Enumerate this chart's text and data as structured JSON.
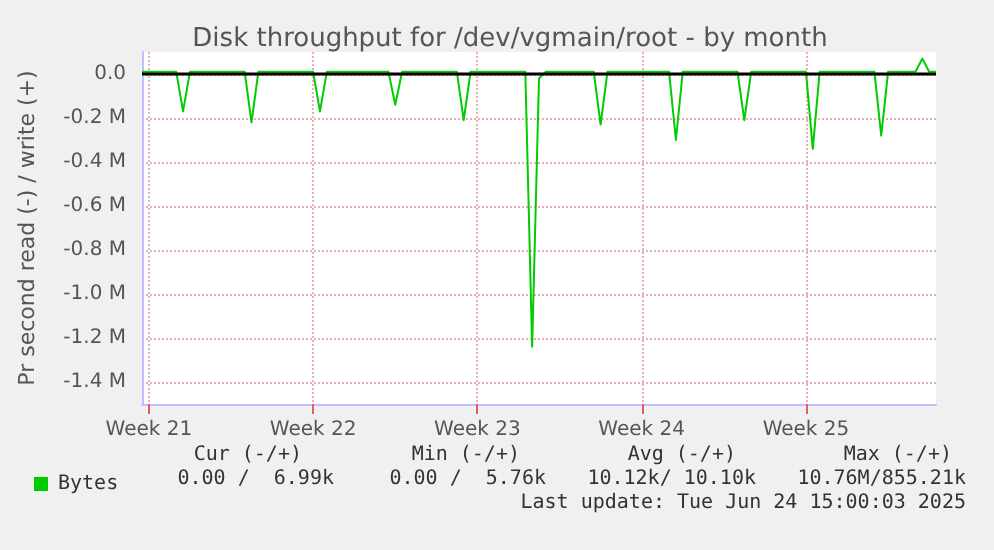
{
  "chart_data": {
    "type": "line",
    "title": "Disk throughput for /dev/vgmain/root - by month",
    "ylabel": "Pr second read (-) / write (+)",
    "categories": [
      null,
      "Week 21",
      null,
      null,
      null,
      null,
      null,
      null,
      null,
      null,
      null,
      null,
      null,
      null,
      null,
      null,
      null,
      null,
      null,
      null,
      null,
      null,
      null,
      null,
      null,
      "Week 22",
      null,
      null,
      null,
      null,
      null,
      null,
      null,
      null,
      null,
      null,
      null,
      null,
      null,
      null,
      null,
      null,
      null,
      null,
      null,
      null,
      null,
      null,
      null,
      "Week 23",
      null,
      null,
      null,
      null,
      null,
      null,
      null,
      null,
      null,
      null,
      null,
      null,
      null,
      null,
      null,
      null,
      null,
      null,
      null,
      null,
      null,
      null,
      null,
      "Week 24",
      null,
      null,
      null,
      null,
      null,
      null,
      null,
      null,
      null,
      null,
      null,
      null,
      null,
      null,
      null,
      null,
      null,
      null,
      null,
      null,
      null,
      null,
      null,
      "Week 25",
      null,
      null,
      null,
      null,
      null,
      null,
      null,
      null,
      null,
      null,
      null,
      null,
      null,
      null,
      null,
      null,
      null,
      null,
      null
    ],
    "series": [
      {
        "name": "Bytes",
        "color": "#00cc00",
        "values": [
          0.01,
          0.01,
          0.01,
          0.01,
          0.01,
          0.01,
          -0.17,
          0.01,
          0.01,
          0.01,
          0.01,
          0.01,
          0.01,
          0.01,
          0.01,
          0.01,
          -0.22,
          0.01,
          0.01,
          0.01,
          0.01,
          0.01,
          0.01,
          0.01,
          0.01,
          0.01,
          -0.17,
          0.01,
          0.01,
          0.01,
          0.01,
          0.01,
          0.01,
          0.01,
          0.01,
          0.01,
          0.01,
          -0.14,
          0.01,
          0.01,
          0.01,
          0.01,
          0.01,
          0.01,
          0.01,
          0.01,
          0.01,
          -0.21,
          0.01,
          0.01,
          0.01,
          0.01,
          0.01,
          0.01,
          0.01,
          0.01,
          0.01,
          -1.24,
          -0.02,
          0.01,
          0.01,
          0.01,
          0.01,
          0.01,
          0.01,
          0.01,
          0.01,
          -0.23,
          0.01,
          0.01,
          0.01,
          0.01,
          0.01,
          0.01,
          0.01,
          0.01,
          0.01,
          0.01,
          -0.3,
          0.01,
          0.01,
          0.01,
          0.01,
          0.01,
          0.01,
          0.01,
          0.01,
          0.01,
          -0.21,
          0.01,
          0.01,
          0.01,
          0.01,
          0.01,
          0.01,
          0.01,
          0.01,
          0.01,
          -0.34,
          0.01,
          0.01,
          0.01,
          0.01,
          0.01,
          0.01,
          0.01,
          0.01,
          0.01,
          -0.28,
          0.01,
          0.01,
          0.01,
          0.01,
          0.01,
          0.07,
          0.01,
          0.01
        ]
      }
    ],
    "ylim": [
      -1.5,
      0.1
    ],
    "yticks": [
      {
        "value": -1.4,
        "label": "-1.4 M"
      },
      {
        "value": -1.2,
        "label": "-1.2 M"
      },
      {
        "value": -1.0,
        "label": "-1.0 M"
      },
      {
        "value": -0.8,
        "label": "-0.8 M"
      },
      {
        "value": -0.6,
        "label": "-0.6 M"
      },
      {
        "value": -0.4,
        "label": "-0.4 M"
      },
      {
        "value": -0.2,
        "label": "-0.2 M"
      },
      {
        "value": 0,
        "label": "0.0"
      }
    ],
    "ref_lines": [
      {
        "axis": "y",
        "value": 0,
        "label": null,
        "color": "#000000"
      }
    ],
    "grid": true,
    "legend": "bottom left",
    "marker": "none",
    "line_style": "solid",
    "annotations": [
      "Cur (-/+)",
      "Min (-/+)",
      "Avg (-/+)",
      "Max (-/+)",
      "0.00 /  6.99k",
      "0.00 /  5.76k",
      "10.12k/ 10.10k",
      "10.76M/855.21k",
      "Last update: Tue Jun 24 15:00:03 2025"
    ]
  }
}
